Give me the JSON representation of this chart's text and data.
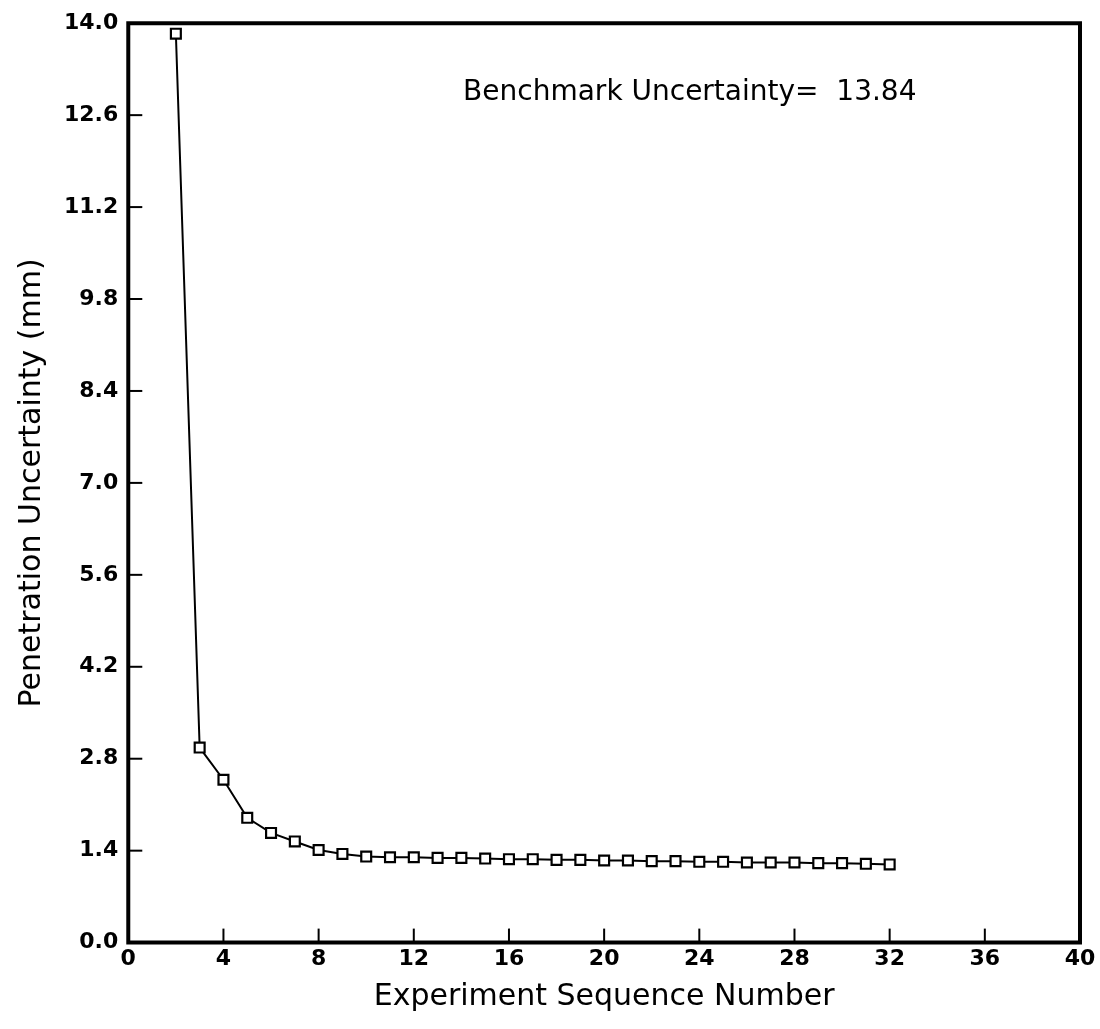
{
  "chart_data": {
    "type": "line",
    "xlabel": "Experiment Sequence Number",
    "ylabel": "Penetration Uncertainty (mm)",
    "annotations": [
      "Benchmark Uncertainty=  13.84"
    ],
    "x": [
      2,
      3,
      4,
      5,
      6,
      7,
      8,
      9,
      10,
      11,
      12,
      13,
      14,
      15,
      16,
      17,
      18,
      19,
      20,
      21,
      22,
      23,
      24,
      25,
      26,
      27,
      28,
      29,
      30,
      31,
      32
    ],
    "series": [
      {
        "color": "#000000",
        "values": [
          13.84,
          2.97,
          2.48,
          1.9,
          1.67,
          1.54,
          1.41,
          1.35,
          1.31,
          1.3,
          1.3,
          1.29,
          1.29,
          1.28,
          1.27,
          1.27,
          1.26,
          1.26,
          1.25,
          1.25,
          1.24,
          1.24,
          1.23,
          1.23,
          1.22,
          1.22,
          1.22,
          1.21,
          1.21,
          1.2,
          1.19
        ]
      }
    ],
    "xlim": [
      0,
      40
    ],
    "xticks": [
      0,
      4,
      8,
      12,
      16,
      20,
      24,
      28,
      32,
      36,
      40
    ],
    "ylim": [
      0,
      14
    ],
    "yticks": [
      {
        "value": 0,
        "label": "0.0"
      },
      {
        "value": 1.4,
        "label": "1.4"
      },
      {
        "value": 2.8,
        "label": "2.8"
      },
      {
        "value": 4.2,
        "label": "4.2"
      },
      {
        "value": 5.6,
        "label": "5.6"
      },
      {
        "value": 7,
        "label": "7.0"
      },
      {
        "value": 8.4,
        "label": "8.4"
      },
      {
        "value": 9.8,
        "label": "9.8"
      },
      {
        "value": 11.2,
        "label": "11.2"
      },
      {
        "value": 12.6,
        "label": "12.6"
      },
      {
        "value": 14,
        "label": "14.0"
      }
    ],
    "grid": false,
    "legend": false,
    "marker": "square",
    "line_style": "solid"
  }
}
